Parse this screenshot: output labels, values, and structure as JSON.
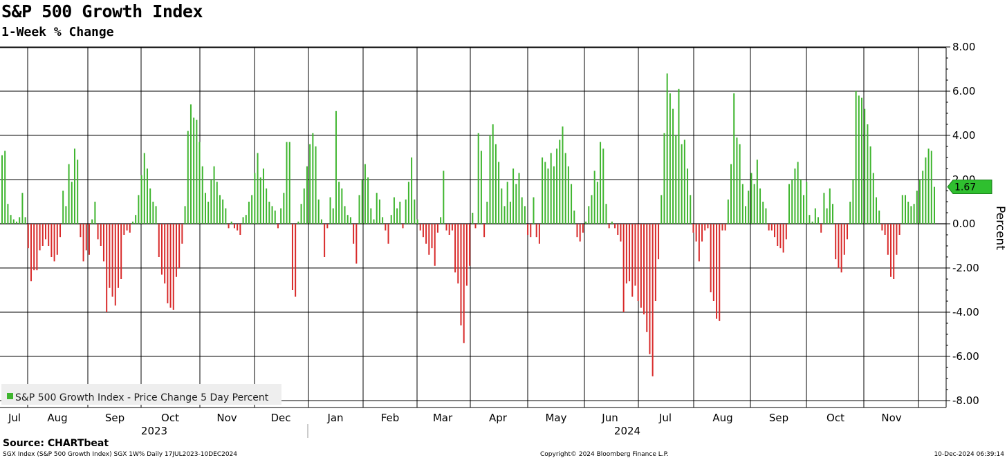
{
  "colors": {
    "positive": "#3fb52f",
    "negative": "#d82a2a",
    "grid": "#000000",
    "callout": "#2fbf2f",
    "legend_bg": "#eeeeee"
  },
  "header": {
    "title": "S&P 500 Growth Index",
    "subtitle": "1-Week % Change"
  },
  "footer": {
    "source": "Source: CHARTbeat",
    "left": "SGX Index (S&P 500 Growth Index) SGX 1W%  Daily 17JUL2023-10DEC2024",
    "middle": "Copyright© 2024 Bloomberg Finance L.P.",
    "right": "10-Dec-2024 06:39:14"
  },
  "chart_data": {
    "type": "bar",
    "title": "S&P 500 Growth Index",
    "subtitle": "1-Week % Change",
    "ylabel": "Percent",
    "xlabel": "",
    "ylim": [
      -8,
      8
    ],
    "yticks": [
      "8.00",
      "6.00",
      "4.00",
      "2.00",
      "0.00",
      "-2.00",
      "-4.00",
      "-6.00",
      "-8.00"
    ],
    "y_tick_values": [
      8,
      6,
      4,
      2,
      0,
      -2,
      -4,
      -6,
      -8
    ],
    "months": [
      "Jul",
      "Aug",
      "Sep",
      "Oct",
      "Nov",
      "Dec",
      "Jan",
      "Feb",
      "Mar",
      "Apr",
      "May",
      "Jun",
      "Jul",
      "Aug",
      "Sep",
      "Oct",
      "Nov"
    ],
    "years": [
      "2023",
      "2024"
    ],
    "legend": "S&P 500 Growth Index - Price Change 5 Day Percent",
    "last_value_label": "1.67",
    "last_value": 1.67,
    "series": [
      {
        "name": "S&P 500 Growth Index - Price Change 5 Day Percent",
        "values": [
          3.1,
          3.3,
          0.9,
          0.4,
          0.2,
          0.1,
          0.3,
          1.4,
          0.3,
          -1.1,
          -2.6,
          -2.1,
          -2.1,
          -1.2,
          -1.0,
          -0.7,
          -1.0,
          -1.5,
          -1.7,
          -1.4,
          -0.6,
          1.5,
          0.8,
          2.7,
          1.9,
          3.4,
          2.9,
          -0.6,
          -1.7,
          -1.2,
          -1.4,
          0.2,
          1.0,
          -0.7,
          -1.0,
          -1.7,
          -4.0,
          -2.9,
          -3.3,
          -3.7,
          -2.9,
          -2.5,
          -0.5,
          -0.3,
          -0.4,
          0.1,
          0.4,
          1.3,
          2.2,
          3.2,
          2.5,
          1.6,
          1.0,
          0.8,
          -1.5,
          -2.3,
          -2.7,
          -3.6,
          -3.8,
          -3.9,
          -2.4,
          -2.0,
          -0.9,
          0.8,
          4.2,
          5.4,
          4.8,
          4.7,
          3.7,
          2.6,
          1.4,
          1.0,
          2.0,
          2.6,
          1.9,
          1.3,
          1.1,
          0.7,
          -0.2,
          0.1,
          -0.2,
          -0.3,
          -0.5,
          0.3,
          0.4,
          1.0,
          1.3,
          2.3,
          3.2,
          2.1,
          2.5,
          1.6,
          1.0,
          0.8,
          0.6,
          -0.2,
          0.7,
          1.4,
          3.7,
          3.7,
          -3.0,
          -3.3,
          0.1,
          0.9,
          1.6,
          2.6,
          3.6,
          4.1,
          3.5,
          1.1,
          0.2,
          -1.5,
          -0.2,
          1.2,
          0.7,
          5.1,
          1.9,
          1.6,
          0.8,
          0.4,
          0.3,
          -0.9,
          -1.8,
          1.3,
          2.0,
          2.7,
          2.1,
          0.7,
          0.2,
          1.4,
          1.1,
          0.3,
          -0.3,
          -0.9,
          0.4,
          1.2,
          0.7,
          1.0,
          -0.2,
          1.1,
          1.9,
          3.0,
          1.1,
          0.2,
          -0.3,
          -0.6,
          -0.9,
          -1.4,
          -1.1,
          -1.9,
          -0.4,
          0.3,
          2.4,
          -0.3,
          -0.5,
          -0.3,
          -2.2,
          -2.7,
          -4.6,
          -5.4,
          -2.8,
          -1.9,
          0.5,
          -0.2,
          4.1,
          3.3,
          -0.6,
          1.0,
          4.0,
          4.5,
          3.6,
          2.8,
          1.6,
          0.8,
          1.9,
          1.0,
          2.5,
          1.8,
          2.3,
          1.2,
          0.8,
          -0.5,
          -0.6,
          1.2,
          -0.6,
          -0.9,
          3.0,
          2.8,
          2.5,
          3.2,
          2.6,
          3.4,
          3.8,
          4.4,
          3.2,
          2.6,
          1.8,
          0.6,
          -0.6,
          -0.8,
          -0.4,
          0.1,
          0.8,
          1.3,
          2.4,
          1.9,
          3.7,
          3.4,
          0.9,
          -0.2,
          0.1,
          -0.2,
          -0.5,
          -0.8,
          -4.0,
          -2.7,
          -2.6,
          -3.3,
          -2.8,
          -3.5,
          -3.8,
          -4.1,
          -4.9,
          -5.9,
          -6.9,
          -3.5,
          -1.6,
          1.3,
          4.1,
          6.8,
          5.9,
          5.2,
          4.0,
          6.1,
          3.6,
          3.8,
          2.5,
          1.3,
          -0.4,
          -0.8,
          -1.7,
          -0.8,
          -0.3,
          -0.2,
          -3.1,
          -3.5,
          -4.3,
          -4.4,
          -0.3,
          -0.3,
          1.1,
          2.7,
          5.9,
          3.9,
          3.6,
          1.8,
          0.8,
          1.5,
          2.3,
          1.8,
          2.9,
          1.6,
          1.0,
          0.7,
          -0.3,
          -0.3,
          -0.6,
          -1.0,
          -1.1,
          -1.3,
          -0.7,
          1.8,
          2.0,
          2.5,
          2.8,
          2.0,
          1.3,
          1.9,
          0.4,
          0.1,
          0.7,
          0.3,
          -0.4,
          1.4,
          0.7,
          1.6,
          0.9,
          -1.6,
          -2.0,
          -2.2,
          -1.4,
          -0.7,
          1.0,
          2.0,
          6.0,
          5.8,
          5.7,
          5.2,
          4.5,
          3.5,
          2.3,
          1.2,
          0.6,
          -0.3,
          -0.5,
          -1.4,
          -2.4,
          -2.5,
          -1.4,
          -0.5,
          1.3,
          1.3,
          1.0,
          0.8,
          0.9,
          1.5,
          2.0,
          2.4,
          3.0,
          3.4,
          3.3,
          1.67
        ]
      }
    ]
  }
}
